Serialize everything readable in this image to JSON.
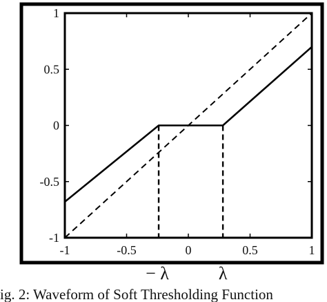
{
  "caption": "ig. 2: Waveform of Soft Thresholding Function",
  "chart_data": {
    "type": "line",
    "title": "",
    "xlabel": "",
    "ylabel": "",
    "xlim": [
      -1,
      1
    ],
    "ylim": [
      -1,
      1
    ],
    "grid": false,
    "x_ticks": [
      -1,
      -0.5,
      0,
      0.5,
      1
    ],
    "x_tick_labels": [
      "-1",
      "-0.5",
      "0",
      "0.5",
      "1"
    ],
    "y_ticks": [
      -1,
      -0.5,
      0,
      0.5,
      1
    ],
    "y_tick_labels": [
      "-1",
      "-0.5",
      "0",
      "0.5",
      "1"
    ],
    "series": [
      {
        "style": "solid",
        "x": [
          -1,
          -0.24,
          0.28,
          1
        ],
        "y": [
          -0.68,
          0,
          0,
          0.7
        ]
      },
      {
        "style": "dashed",
        "x": [
          -1,
          1
        ],
        "y": [
          -1,
          1
        ]
      }
    ],
    "threshold_markers": [
      {
        "x": -0.24,
        "label": "− λ",
        "style": "dashed"
      },
      {
        "x": 0.28,
        "label": "λ",
        "style": "dashed"
      }
    ]
  }
}
